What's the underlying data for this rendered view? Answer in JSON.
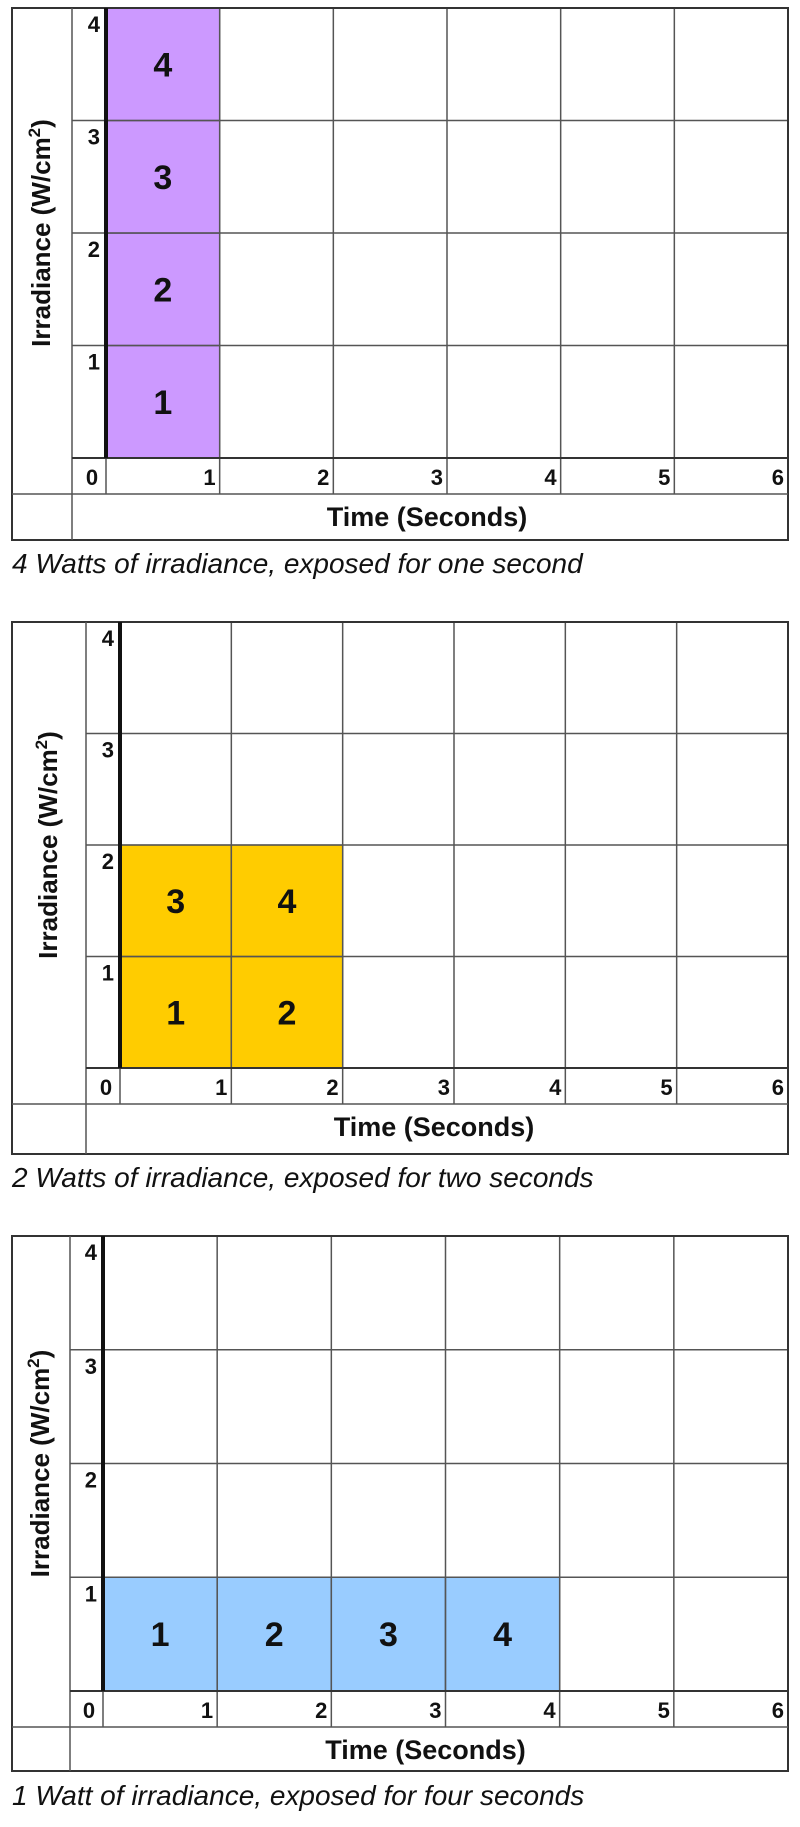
{
  "chart_data": [
    {
      "type": "grid",
      "ylabel": "Irradiance (W/cm²)",
      "ylabel_main": "Irradiance (W/cm",
      "ylabel_sup": "2",
      "ylabel_tail": ")",
      "xlabel": "Time (Seconds)",
      "x_ticks": [
        "0",
        "1",
        "2",
        "3",
        "4",
        "5",
        "6"
      ],
      "y_ticks": [
        "1",
        "2",
        "3",
        "4"
      ],
      "xlim": [
        0,
        6
      ],
      "ylim": [
        0,
        4
      ],
      "irradiance": 4,
      "duration": 1,
      "fill_color": "#cc99ff",
      "cells": [
        {
          "col": 1,
          "row": 1,
          "label": "1"
        },
        {
          "col": 1,
          "row": 2,
          "label": "2"
        },
        {
          "col": 1,
          "row": 3,
          "label": "3"
        },
        {
          "col": 1,
          "row": 4,
          "label": "4"
        }
      ],
      "caption": "4 Watts of irradiance, exposed for one second"
    },
    {
      "type": "grid",
      "ylabel": "Irradiance (W/cm²)",
      "ylabel_main": "Irradiance (W/cm",
      "ylabel_sup": "2",
      "ylabel_tail": ")",
      "xlabel": "Time (Seconds)",
      "x_ticks": [
        "0",
        "1",
        "2",
        "3",
        "4",
        "5",
        "6"
      ],
      "y_ticks": [
        "1",
        "2",
        "3",
        "4"
      ],
      "xlim": [
        0,
        6
      ],
      "ylim": [
        0,
        4
      ],
      "irradiance": 2,
      "duration": 2,
      "fill_color": "#ffcc00",
      "cells": [
        {
          "col": 1,
          "row": 1,
          "label": "1"
        },
        {
          "col": 2,
          "row": 1,
          "label": "2"
        },
        {
          "col": 1,
          "row": 2,
          "label": "3"
        },
        {
          "col": 2,
          "row": 2,
          "label": "4"
        }
      ],
      "caption": "2 Watts of irradiance, exposed for two seconds"
    },
    {
      "type": "grid",
      "ylabel": "Irradiance (W/cm²)",
      "ylabel_main": "Irradiance (W/cm",
      "ylabel_sup": "2",
      "ylabel_tail": ")",
      "xlabel": "Time (Seconds)",
      "x_ticks": [
        "0",
        "1",
        "2",
        "3",
        "4",
        "5",
        "6"
      ],
      "y_ticks": [
        "1",
        "2",
        "3",
        "4"
      ],
      "xlim": [
        0,
        6
      ],
      "ylim": [
        0,
        4
      ],
      "irradiance": 1,
      "duration": 4,
      "fill_color": "#99ccff",
      "cells": [
        {
          "col": 1,
          "row": 1,
          "label": "1"
        },
        {
          "col": 2,
          "row": 1,
          "label": "2"
        },
        {
          "col": 3,
          "row": 1,
          "label": "3"
        },
        {
          "col": 4,
          "row": 1,
          "label": "4"
        }
      ],
      "caption": "1 Watt of irradiance, exposed for four seconds"
    }
  ]
}
